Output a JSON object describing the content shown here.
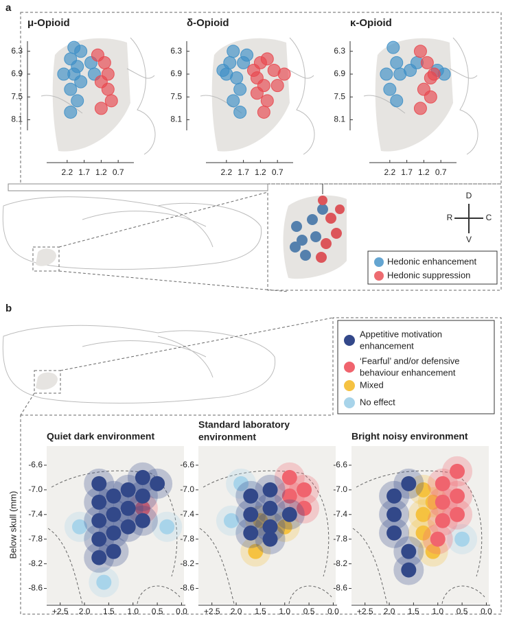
{
  "panel_a": {
    "label": "a",
    "xlim": [
      2.6,
      0.3
    ],
    "ylim": [
      5.8,
      9.1
    ],
    "xticks": [
      2.2,
      1.7,
      1.2,
      0.7
    ],
    "yticks": [
      6.3,
      6.9,
      7.5,
      8.1
    ],
    "colors": [
      "#3d8fc6",
      "#e8474e"
    ],
    "plots": [
      {
        "title": "μ-Opioid",
        "points": [
          [
            2.0,
            6.2,
            0
          ],
          [
            1.8,
            6.3,
            0
          ],
          [
            2.1,
            6.5,
            0
          ],
          [
            1.9,
            6.7,
            0
          ],
          [
            2.3,
            6.9,
            0
          ],
          [
            2.0,
            6.9,
            0
          ],
          [
            1.8,
            7.1,
            0
          ],
          [
            2.1,
            7.3,
            0
          ],
          [
            1.9,
            7.6,
            0
          ],
          [
            2.1,
            7.9,
            0
          ],
          [
            1.5,
            6.6,
            0
          ],
          [
            1.4,
            6.9,
            0
          ],
          [
            1.3,
            6.4,
            1
          ],
          [
            1.1,
            6.6,
            1
          ],
          [
            1.0,
            6.9,
            1
          ],
          [
            1.2,
            7.1,
            1
          ],
          [
            1.0,
            7.3,
            1
          ],
          [
            1.2,
            7.8,
            1
          ],
          [
            0.9,
            7.6,
            1
          ]
        ]
      },
      {
        "title": "δ-Opioid",
        "points": [
          [
            2.3,
            6.8,
            0
          ],
          [
            2.1,
            6.6,
            0
          ],
          [
            2.0,
            6.3,
            0
          ],
          [
            2.2,
            6.9,
            0
          ],
          [
            1.9,
            7.0,
            0
          ],
          [
            1.8,
            7.3,
            0
          ],
          [
            2.0,
            7.6,
            0
          ],
          [
            1.7,
            6.6,
            0
          ],
          [
            1.6,
            6.4,
            0
          ],
          [
            1.8,
            7.9,
            0
          ],
          [
            1.4,
            6.8,
            1
          ],
          [
            1.2,
            6.6,
            1
          ],
          [
            1.3,
            7.0,
            1
          ],
          [
            1.1,
            7.2,
            1
          ],
          [
            1.0,
            6.5,
            1
          ],
          [
            0.8,
            6.8,
            1
          ],
          [
            1.3,
            7.4,
            1
          ],
          [
            1.0,
            7.6,
            1
          ],
          [
            0.7,
            7.2,
            1
          ],
          [
            1.1,
            7.9,
            1
          ],
          [
            0.5,
            6.9,
            1
          ]
        ]
      },
      {
        "title": "κ-Opioid",
        "points": [
          [
            2.1,
            6.2,
            0
          ],
          [
            2.3,
            6.9,
            0
          ],
          [
            2.0,
            6.6,
            0
          ],
          [
            1.9,
            6.9,
            0
          ],
          [
            2.2,
            7.3,
            0
          ],
          [
            2.0,
            7.6,
            0
          ],
          [
            1.6,
            6.8,
            0
          ],
          [
            1.4,
            6.6,
            0
          ],
          [
            0.8,
            6.8,
            0
          ],
          [
            0.6,
            6.9,
            0
          ],
          [
            1.3,
            6.3,
            1
          ],
          [
            1.1,
            6.6,
            1
          ],
          [
            1.0,
            7.0,
            1
          ],
          [
            1.2,
            7.3,
            1
          ],
          [
            1.0,
            7.5,
            1
          ],
          [
            1.3,
            7.8,
            1
          ],
          [
            0.9,
            6.9,
            1
          ]
        ]
      }
    ],
    "compass": {
      "up": "D",
      "left": "R",
      "right": "C",
      "down": "V"
    },
    "legend": [
      "Hedonic enhancement",
      "Hedonic suppression"
    ]
  },
  "panel_b": {
    "label": "b",
    "y_label": "Below skull (mm)",
    "xlim": [
      2.75,
      -0.05
    ],
    "ylim": [
      -6.3,
      -8.85
    ],
    "xticks": [
      {
        "value": 2.5,
        "label": "+2.5"
      },
      {
        "value": 2,
        "label": "2.0"
      },
      1.5,
      {
        "value": 1,
        "label": "1.0"
      },
      0.5,
      {
        "value": 0,
        "label": "0.0"
      }
    ],
    "yticks": [
      -6.6,
      {
        "value": -7,
        "label": "-7.0"
      },
      -7.4,
      -7.8,
      -8.2,
      -8.6
    ],
    "legend": [
      {
        "lines": [
          "Appetitive motivation",
          "enhancement"
        ],
        "color": "#33488a"
      },
      {
        "lines": [
          "‘Fearful’ and/or defensive",
          "behaviour enhancement"
        ],
        "color": "#f0646e"
      },
      {
        "lines": [
          "Mixed"
        ],
        "color": "#f5c242"
      },
      {
        "lines": [
          "No effect"
        ],
        "color": "#a8d4ea"
      }
    ],
    "plots": [
      {
        "title": [
          "Quiet dark environment"
        ],
        "points": [
          [
            2.1,
            -7.6,
            3
          ],
          [
            0.3,
            -7.6,
            3
          ],
          [
            1.6,
            -8.5,
            3
          ],
          [
            1.7,
            -6.9,
            0
          ],
          [
            1.7,
            -7.2,
            0
          ],
          [
            1.7,
            -7.5,
            0
          ],
          [
            1.7,
            -7.8,
            0
          ],
          [
            1.7,
            -8.1,
            0
          ],
          [
            1.4,
            -7.1,
            0
          ],
          [
            1.4,
            -7.4,
            0
          ],
          [
            1.4,
            -7.7,
            0
          ],
          [
            1.4,
            -8.0,
            0
          ],
          [
            1.1,
            -7.0,
            0
          ],
          [
            1.1,
            -7.3,
            0
          ],
          [
            1.1,
            -7.6,
            0
          ],
          [
            0.8,
            -6.8,
            0
          ],
          [
            0.8,
            -7.1,
            0
          ],
          [
            0.8,
            -7.5,
            0
          ],
          [
            0.5,
            -6.9,
            0
          ],
          [
            0.8,
            -7.3,
            1
          ]
        ]
      },
      {
        "title": [
          "Standard laboratory",
          "environment"
        ],
        "points": [
          [
            1.9,
            -6.9,
            3
          ],
          [
            2.1,
            -7.5,
            3
          ],
          [
            1.5,
            -7.5,
            2
          ],
          [
            1.0,
            -7.6,
            2
          ],
          [
            1.6,
            -8.0,
            2
          ],
          [
            1.7,
            -7.1,
            0
          ],
          [
            1.7,
            -7.4,
            0
          ],
          [
            1.7,
            -7.7,
            0
          ],
          [
            1.3,
            -7.0,
            0
          ],
          [
            1.3,
            -7.3,
            0
          ],
          [
            1.3,
            -7.6,
            0
          ],
          [
            1.3,
            -7.8,
            0
          ],
          [
            0.9,
            -6.8,
            1
          ],
          [
            0.9,
            -7.1,
            1
          ],
          [
            0.6,
            -7.0,
            1
          ],
          [
            0.6,
            -7.3,
            1
          ],
          [
            0.9,
            -7.4,
            0
          ]
        ]
      },
      {
        "title": [
          "Bright noisy environment"
        ],
        "points": [
          [
            0.5,
            -7.8,
            3
          ],
          [
            1.3,
            -7.0,
            2
          ],
          [
            1.3,
            -7.4,
            2
          ],
          [
            1.3,
            -7.7,
            2
          ],
          [
            1.1,
            -7.2,
            2
          ],
          [
            1.1,
            -8.0,
            2
          ],
          [
            1.9,
            -7.1,
            0
          ],
          [
            1.9,
            -7.4,
            0
          ],
          [
            1.9,
            -7.7,
            0
          ],
          [
            1.6,
            -6.9,
            0
          ],
          [
            1.6,
            -8.0,
            0
          ],
          [
            1.6,
            -8.3,
            0
          ],
          [
            0.9,
            -6.9,
            1
          ],
          [
            0.9,
            -7.2,
            1
          ],
          [
            0.9,
            -7.5,
            1
          ],
          [
            0.6,
            -6.7,
            1
          ],
          [
            0.6,
            -7.1,
            1
          ],
          [
            0.6,
            -7.4,
            1
          ],
          [
            1.0,
            -7.8,
            1
          ]
        ]
      }
    ]
  }
}
